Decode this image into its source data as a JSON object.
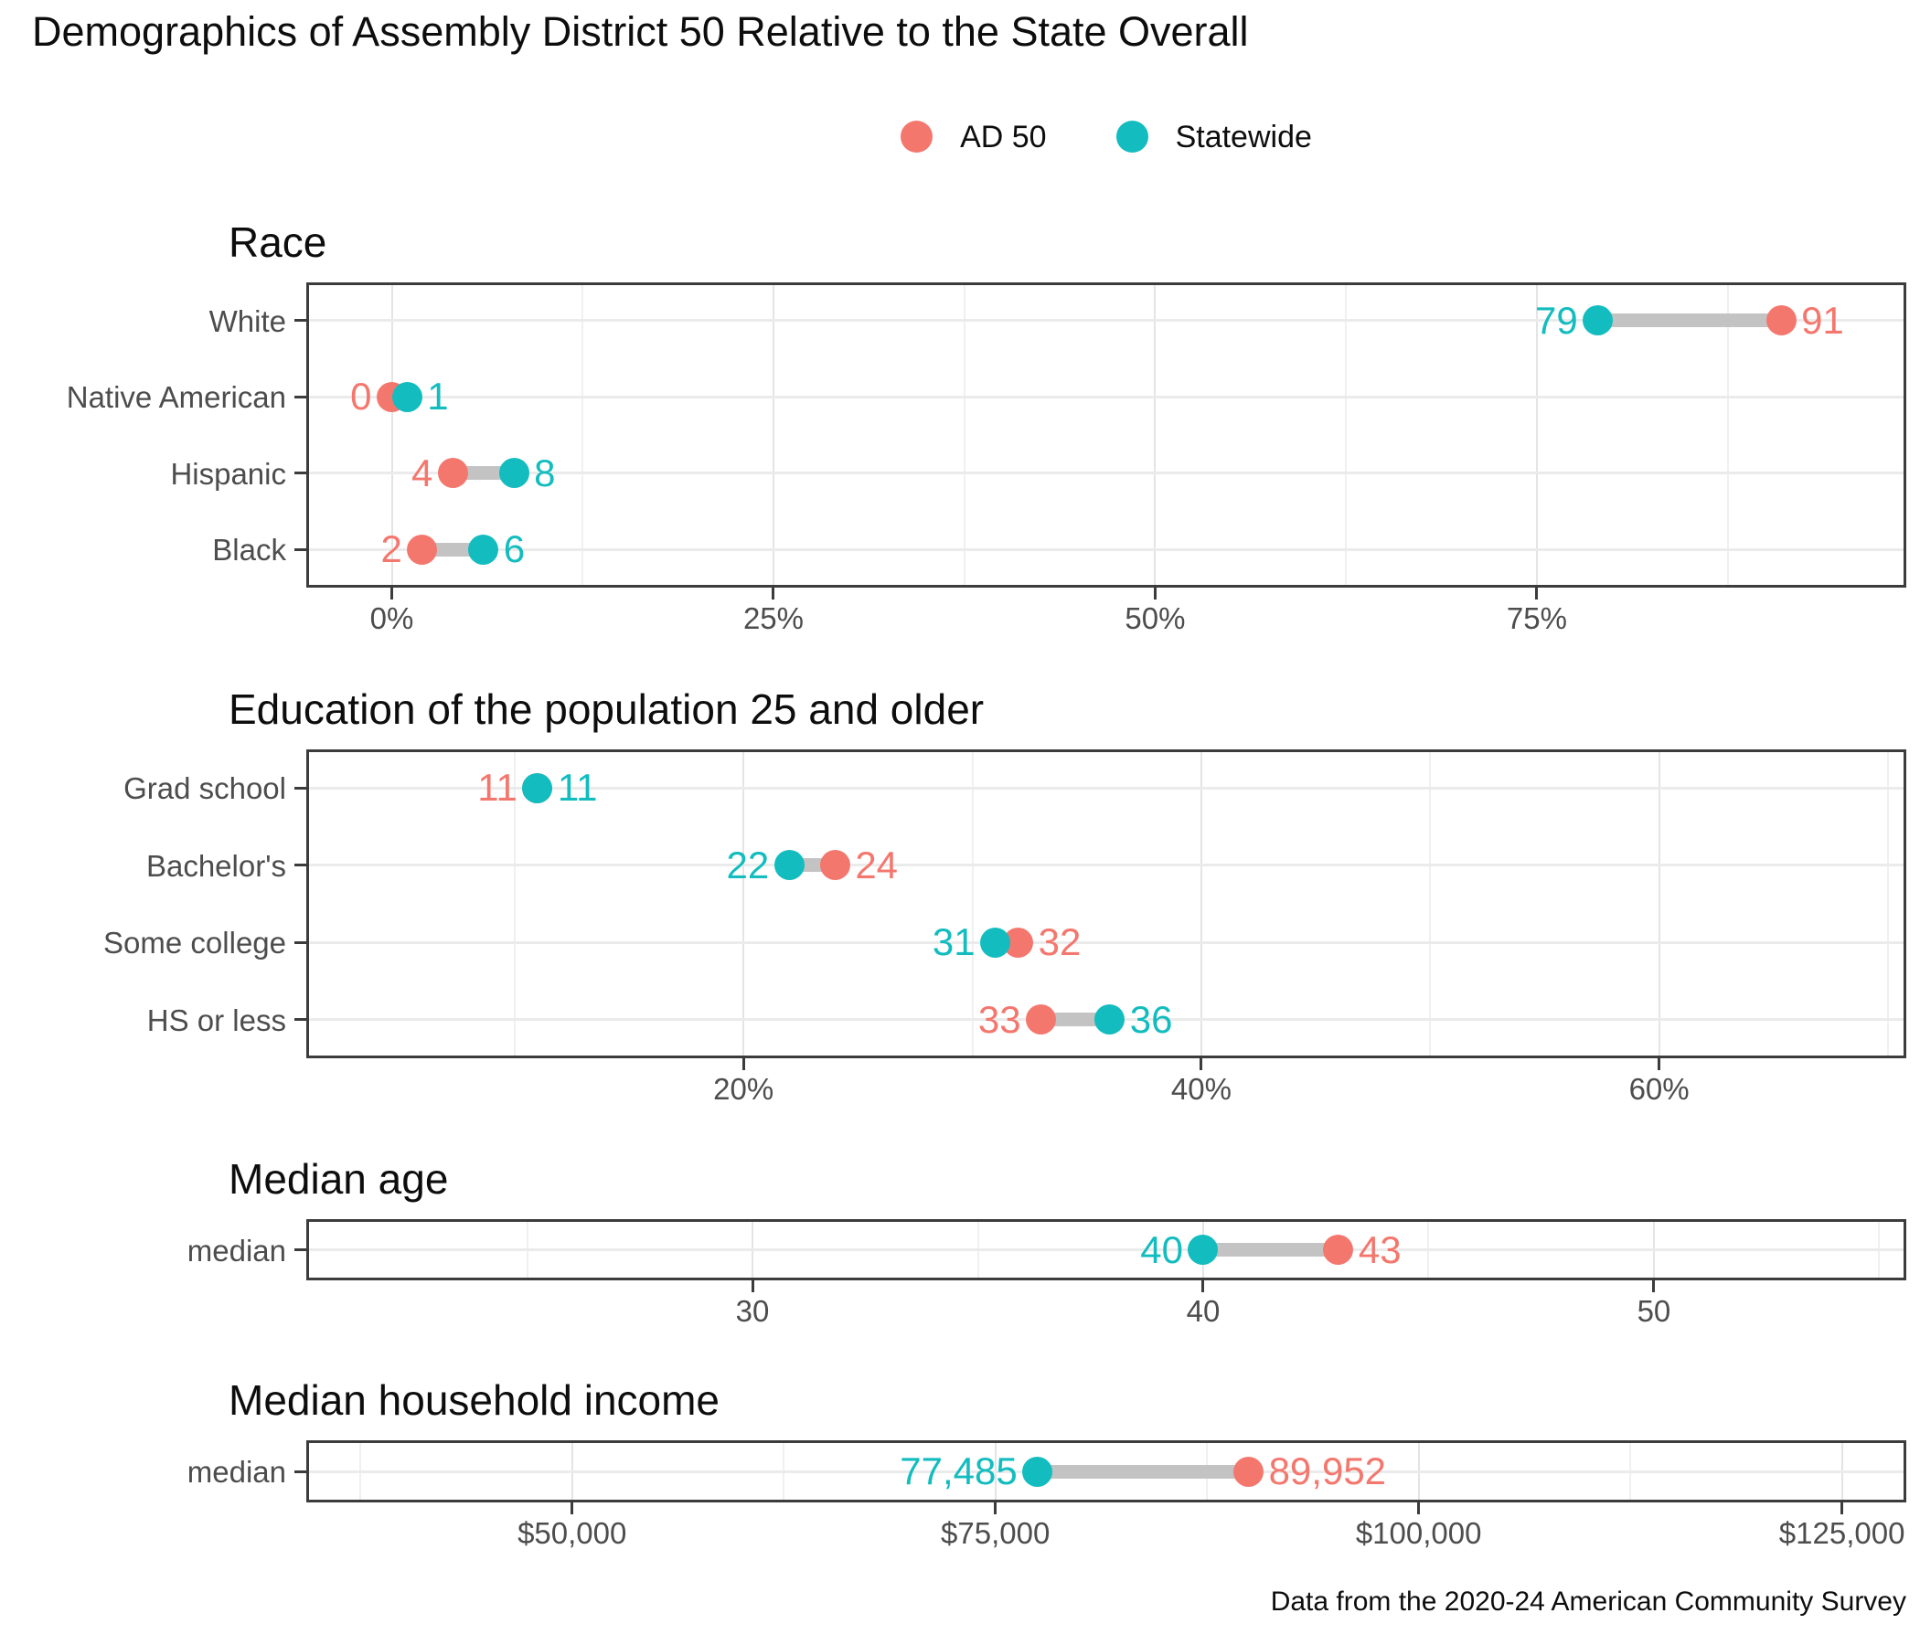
{
  "title": "Demographics of Assembly District 50 Relative to the State Overall",
  "caption": "Data from the 2020-24 American Community Survey",
  "legend": {
    "items": [
      {
        "label": "AD 50",
        "color": "#F4776E"
      },
      {
        "label": "Statewide",
        "color": "#12BCBF"
      }
    ]
  },
  "colors": {
    "ad50": "#F4776E",
    "statewide": "#12BCBF",
    "segment": "#C3C3C3",
    "grid_major": "#E4E4E4",
    "grid_minor": "#F0F0F0",
    "panel_border": "#3C3C3C",
    "axis_text": "#4D4D4D"
  },
  "chart_data": [
    {
      "type": "dumbbell",
      "section_title": "Race",
      "categories": [
        "White",
        "Native American",
        "Hispanic",
        "Black"
      ],
      "series": [
        {
          "name": "AD 50",
          "key": "ad50",
          "values": [
            91,
            0,
            4,
            2
          ],
          "labels": [
            "91",
            "0",
            "4",
            "2"
          ]
        },
        {
          "name": "Statewide",
          "key": "statewide",
          "values": [
            79,
            1,
            8,
            6
          ],
          "labels": [
            "79",
            "1",
            "8",
            "6"
          ]
        }
      ],
      "axis": {
        "domain": [
          -5.6,
          99.2
        ],
        "ticks": [
          0,
          25,
          50,
          75
        ],
        "tick_labels": [
          "0%",
          "25%",
          "50%",
          "75%"
        ],
        "minor_ticks": [
          12.5,
          37.5,
          62.5,
          87.5
        ]
      }
    },
    {
      "type": "dumbbell",
      "section_title": "Education of the population 25 and older",
      "categories": [
        "Grad school",
        "Bachelor's",
        "Some college",
        "HS or less"
      ],
      "series": [
        {
          "name": "AD 50",
          "key": "ad50",
          "values": [
            11,
            24,
            32,
            33
          ],
          "labels": [
            "11",
            "24",
            "32",
            "33"
          ]
        },
        {
          "name": "Statewide",
          "key": "statewide",
          "values": [
            11,
            22,
            31,
            36
          ],
          "labels": [
            "11",
            "22",
            "31",
            "36"
          ]
        }
      ],
      "axis": {
        "domain": [
          0.9,
          70.8
        ],
        "ticks": [
          20,
          40,
          60
        ],
        "tick_labels": [
          "20%",
          "40%",
          "60%"
        ],
        "minor_ticks": [
          10,
          30,
          50,
          70
        ]
      }
    },
    {
      "type": "dumbbell",
      "section_title": "Median age",
      "categories": [
        "median"
      ],
      "series": [
        {
          "name": "AD 50",
          "key": "ad50",
          "values": [
            43
          ],
          "labels": [
            "43"
          ]
        },
        {
          "name": "Statewide",
          "key": "statewide",
          "values": [
            40
          ],
          "labels": [
            "40"
          ]
        }
      ],
      "axis": {
        "domain": [
          20.1,
          55.6
        ],
        "ticks": [
          30,
          40,
          50
        ],
        "tick_labels": [
          "30",
          "40",
          "50"
        ],
        "minor_ticks": [
          25,
          35,
          45,
          55
        ]
      }
    },
    {
      "type": "dumbbell",
      "section_title": "Median household income",
      "categories": [
        "median"
      ],
      "series": [
        {
          "name": "AD 50",
          "key": "ad50",
          "values": [
            89952
          ],
          "labels": [
            "89,952"
          ]
        },
        {
          "name": "Statewide",
          "key": "statewide",
          "values": [
            77485
          ],
          "labels": [
            "77,485"
          ]
        }
      ],
      "axis": {
        "domain": [
          34300,
          128800
        ],
        "ticks": [
          50000,
          75000,
          100000,
          125000
        ],
        "tick_labels": [
          "$50,000",
          "$75,000",
          "$100,000",
          "$125,000"
        ],
        "minor_ticks": [
          37500,
          62500,
          87500,
          112500
        ]
      }
    }
  ]
}
